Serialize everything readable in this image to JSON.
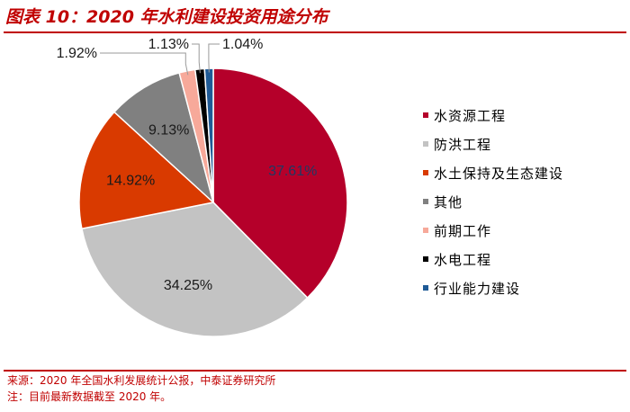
{
  "figure": {
    "title": "图表 10：2020 年水利建设投资用途分布"
  },
  "chart_data": {
    "type": "pie",
    "title": "",
    "start_angle_deg": 0,
    "direction": "clockwise",
    "slices": [
      {
        "label": "水资源工程",
        "value": 37.61,
        "value_label": "37.61%",
        "color": "#b5002a",
        "label_color": "#1f3864",
        "label_placement": "inside"
      },
      {
        "label": "防洪工程",
        "value": 34.25,
        "value_label": "34.25%",
        "color": "#c3c3c3",
        "label_color": "#1a1a1a",
        "label_placement": "inside"
      },
      {
        "label": "水土保持及生态建设",
        "value": 14.92,
        "value_label": "14.92%",
        "color": "#d93a00",
        "label_color": "#1a1a1a",
        "label_placement": "inside"
      },
      {
        "label": "其他",
        "value": 9.13,
        "value_label": "9.13%",
        "color": "#808080",
        "label_color": "#1a1a1a",
        "label_placement": "inside"
      },
      {
        "label": "前期工作",
        "value": 1.92,
        "value_label": "1.92%",
        "color": "#f7a99a",
        "label_color": "#1a1a1a",
        "label_placement": "outside"
      },
      {
        "label": "水电工程",
        "value": 1.13,
        "value_label": "1.13%",
        "color": "#000000",
        "label_color": "#1a1a1a",
        "label_placement": "outside"
      },
      {
        "label": "行业能力建设",
        "value": 1.04,
        "value_label": "1.04%",
        "color": "#1f5a96",
        "label_color": "#1a1a1a",
        "label_placement": "outside"
      }
    ],
    "legend_position": "right"
  },
  "footer": {
    "source": "来源：2020 年全国水利发展统计公报，中泰证券研究所",
    "note": "注：目前最新数据截至 2020 年。"
  }
}
